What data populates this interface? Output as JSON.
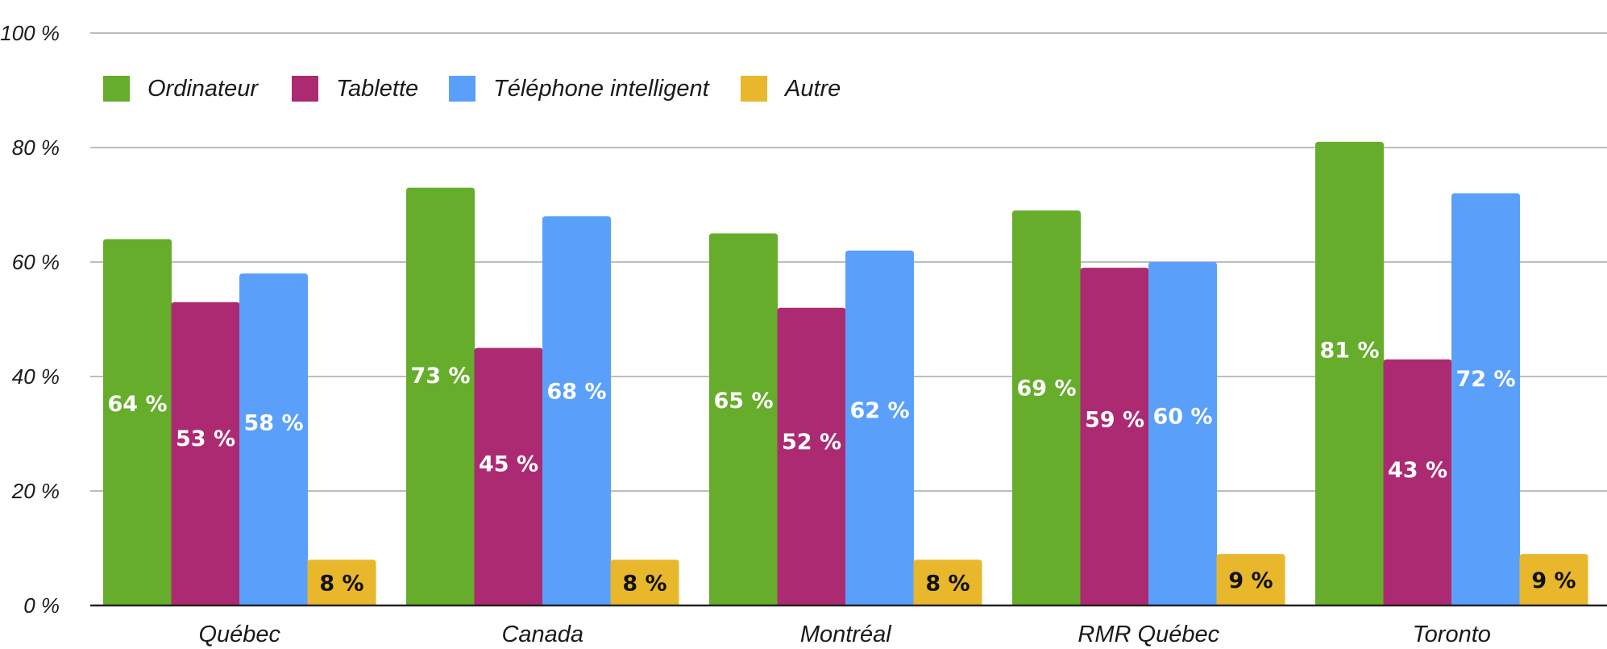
{
  "chart_data": {
    "type": "bar",
    "title": "",
    "xlabel": "",
    "ylabel": "",
    "ylim": [
      0,
      100
    ],
    "y_ticks": [
      0,
      20,
      40,
      60,
      80,
      100
    ],
    "y_tick_labels": [
      "0 %",
      "20 %",
      "40 %",
      "60 %",
      "80 %",
      "100 %"
    ],
    "grid": true,
    "legend_position": "top-left",
    "categories": [
      "Québec",
      "Canada",
      "Montréal",
      "RMR Québec",
      "Toronto"
    ],
    "series": [
      {
        "name": "Ordinateur",
        "color": "#66ad2b",
        "label_color": "#ffffff",
        "values": [
          64,
          73,
          65,
          69,
          81
        ],
        "labels": [
          "64 %",
          "73 %",
          "65 %",
          "69 %",
          "81 %"
        ]
      },
      {
        "name": "Tablette",
        "color": "#ac2a72",
        "label_color": "#ffffff",
        "values": [
          53,
          45,
          52,
          59,
          43
        ],
        "labels": [
          "53 %",
          "45 %",
          "52 %",
          "59 %",
          "43 %"
        ]
      },
      {
        "name": "Téléphone intelligent",
        "color": "#5aa0fb",
        "label_color": "#ffffff",
        "values": [
          58,
          68,
          62,
          60,
          72
        ],
        "labels": [
          "58 %",
          "68 %",
          "62 %",
          "60 %",
          "72 %"
        ]
      },
      {
        "name": "Autre",
        "color": "#e8b72c",
        "label_color": "#111111",
        "values": [
          8,
          8,
          8,
          9,
          9
        ],
        "labels": [
          "8 %",
          "8 %",
          "8 %",
          "9 %",
          "9 %"
        ]
      }
    ]
  }
}
